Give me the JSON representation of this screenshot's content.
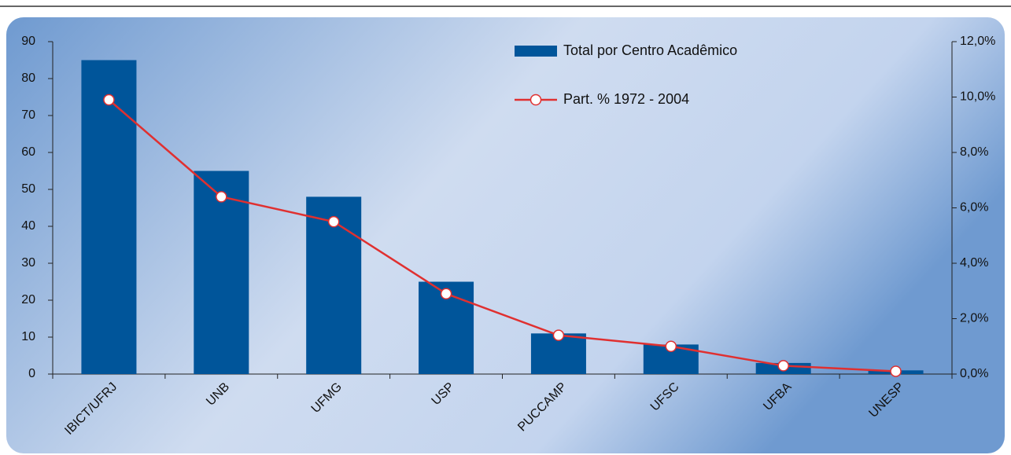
{
  "chart_data": {
    "type": "bar_line",
    "categories": [
      "IBICT/UFRJ",
      "UNB",
      "UFMG",
      "USP",
      "PUCCAMP",
      "UFSC",
      "UFBA",
      "UNESP"
    ],
    "series": [
      {
        "name": "Total por Centro Acadêmico",
        "type": "bar",
        "color": "#00559a",
        "values": [
          85,
          55,
          48,
          25,
          11,
          8,
          3,
          1
        ]
      },
      {
        "name": "Part. % 1972 - 2004",
        "type": "line",
        "axis": "y2",
        "color": "#e03030",
        "values": [
          9.9,
          6.4,
          5.5,
          2.9,
          1.4,
          1.0,
          0.3,
          0.1
        ]
      }
    ],
    "ylim": [
      0,
      90
    ],
    "yticks": [
      0,
      10,
      20,
      30,
      40,
      50,
      60,
      70,
      80,
      90
    ],
    "y2lim": [
      0,
      12
    ],
    "y2ticks": [
      {
        "value": 0,
        "label": "0,0%"
      },
      {
        "value": 2,
        "label": "2,0%"
      },
      {
        "value": 4,
        "label": "4,0%"
      },
      {
        "value": 6,
        "label": "6,0%"
      },
      {
        "value": 8,
        "label": "8,0%"
      },
      {
        "value": 10,
        "label": "10,0%"
      },
      {
        "value": 12,
        "label": "12,0%"
      }
    ],
    "legend": "top-right"
  }
}
